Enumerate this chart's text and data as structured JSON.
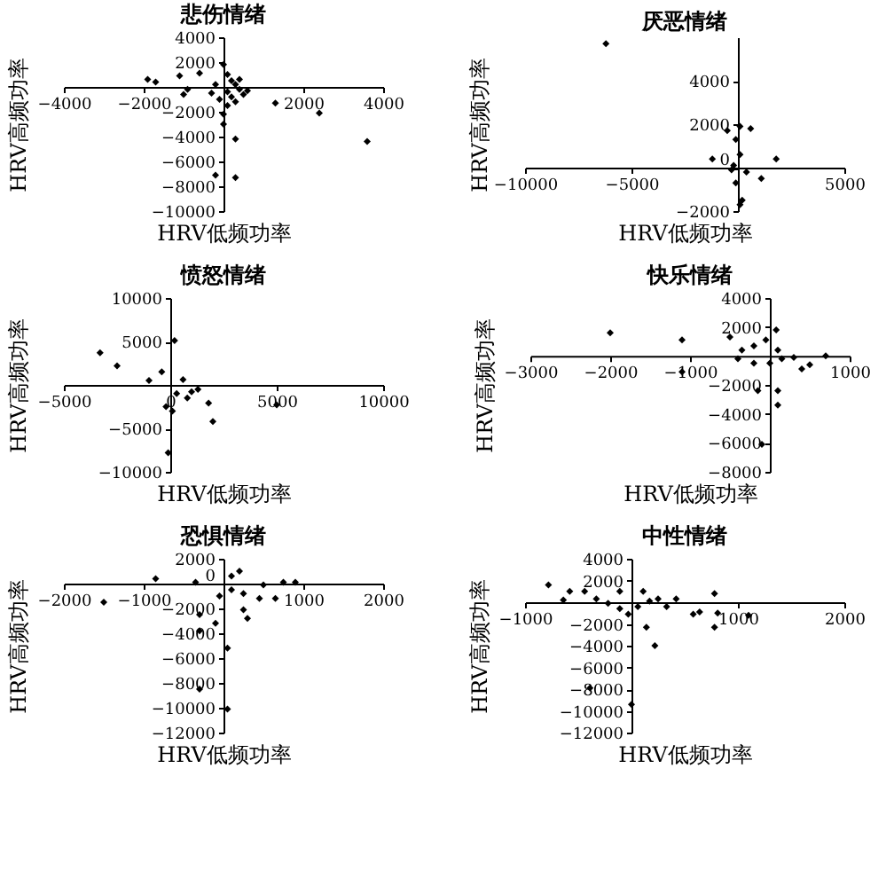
{
  "chart_data": [
    {
      "type": "scatter",
      "title": "悲伤情绪",
      "xlabel": "HRV低频功率",
      "ylabel": "HRV高频功率",
      "marker": "diamond",
      "color": "#000000",
      "xlim": [
        -4000,
        4000
      ],
      "ylim": [
        -10000,
        4000
      ],
      "xticks": [
        -4000,
        -2000,
        2000,
        4000
      ],
      "yticks": [
        -10000,
        -8000,
        -6000,
        -4000,
        -2000,
        2000,
        4000
      ],
      "x": [
        -1900,
        -1700,
        -1100,
        -600,
        -900,
        -1000,
        -300,
        0,
        100,
        200,
        300,
        400,
        100,
        200,
        500,
        300,
        100,
        0,
        300,
        1300,
        2400,
        3600,
        -200,
        300,
        600,
        -200,
        -100,
        400,
        0
      ],
      "values": [
        600,
        400,
        900,
        1100,
        -200,
        -600,
        -500,
        1800,
        1000,
        500,
        200,
        -200,
        -400,
        -800,
        -600,
        -1200,
        -1500,
        -2200,
        -4200,
        -1300,
        -2100,
        -4400,
        -7100,
        -7300,
        -300,
        200,
        -1000,
        600,
        -3000
      ]
    },
    {
      "type": "scatter",
      "title": "厌恶情绪",
      "xlabel": "HRV低频功率",
      "ylabel": "HRV高频功率",
      "marker": "diamond",
      "color": "#000000",
      "xlim": [
        -10000,
        5000
      ],
      "ylim": [
        -2000,
        6000
      ],
      "xticks": [
        -10000,
        -5000,
        5000
      ],
      "yticks": [
        -2000,
        0,
        2000,
        4000
      ],
      "x": [
        -6200,
        -500,
        100,
        600,
        -100,
        -1200,
        1800,
        1100,
        -200,
        100,
        400,
        -100,
        200,
        100,
        -300
      ],
      "values": [
        5700,
        1700,
        1900,
        1800,
        1300,
        400,
        400,
        -500,
        100,
        600,
        -200,
        -700,
        -1500,
        -1700,
        -100
      ]
    },
    {
      "type": "scatter",
      "title": "愤怒情绪",
      "xlabel": "HRV低频功率",
      "ylabel": "HRV高频功率",
      "marker": "diamond",
      "color": "#000000",
      "xlim": [
        -5000,
        10000
      ],
      "ylim": [
        -10000,
        10000
      ],
      "xticks": [
        -5000,
        0,
        5000,
        10000
      ],
      "yticks": [
        -10000,
        -5000,
        5000,
        10000
      ],
      "x": [
        -3300,
        -2500,
        200,
        1300,
        1800,
        2000,
        5000,
        -100,
        -1000,
        -400,
        300,
        600,
        -200,
        800,
        100,
        1000
      ],
      "values": [
        3700,
        2200,
        5100,
        -500,
        -2100,
        -4200,
        -2300,
        -7800,
        500,
        1500,
        -1000,
        600,
        -2500,
        -1500,
        -3000,
        -800
      ]
    },
    {
      "type": "scatter",
      "title": "快乐情绪",
      "xlabel": "HRV低频功率",
      "ylabel": "HRV高频功率",
      "marker": "diamond",
      "color": "#000000",
      "xlim": [
        -3000,
        1000
      ],
      "ylim": [
        -8000,
        4000
      ],
      "xticks": [
        -3000,
        -2000,
        -1000,
        1000
      ],
      "yticks": [
        -8000,
        -6000,
        -4000,
        -2000,
        2000,
        4000
      ],
      "x": [
        -2000,
        -1100,
        -1100,
        -150,
        100,
        100,
        -100,
        700,
        500,
        400,
        300,
        -500,
        -350,
        -200,
        -50,
        80,
        100,
        0,
        -200,
        -400,
        150
      ],
      "values": [
        1600,
        1100,
        -1100,
        -2400,
        -2400,
        -3400,
        -6100,
        0,
        -600,
        -900,
        -100,
        1300,
        400,
        700,
        1100,
        1800,
        400,
        -500,
        -500,
        -200,
        -200
      ]
    },
    {
      "type": "scatter",
      "title": "恐惧情绪",
      "xlabel": "HRV低频功率",
      "ylabel": "HRV高频功率",
      "marker": "diamond",
      "color": "#000000",
      "xlim": [
        -2000,
        2000
      ],
      "ylim": [
        -12000,
        2000
      ],
      "xticks": [
        -2000,
        -1000,
        1000,
        2000
      ],
      "yticks": [
        -12000,
        -10000,
        -8000,
        -6000,
        -4000,
        -2000,
        0,
        2000
      ],
      "x": [
        -1500,
        -850,
        -350,
        -300,
        -100,
        -300,
        50,
        -300,
        50,
        750,
        900,
        650,
        300,
        250,
        200,
        100,
        500,
        100,
        -50,
        250,
        450
      ],
      "values": [
        -1500,
        400,
        100,
        -2500,
        -3200,
        -3800,
        -5200,
        -8500,
        -10100,
        100,
        100,
        -1200,
        -2800,
        -2100,
        1000,
        600,
        -100,
        -500,
        -1000,
        -800,
        -1200
      ]
    },
    {
      "type": "scatter",
      "title": "中性情绪",
      "xlabel": "HRV低频功率",
      "ylabel": "HRV高频功率",
      "marker": "diamond",
      "color": "#000000",
      "xlim": [
        -1000,
        2000
      ],
      "ylim": [
        -12000,
        4000
      ],
      "xticks": [
        -1000,
        1000,
        2000
      ],
      "yticks": [
        -12000,
        -10000,
        -8000,
        -6000,
        -4000,
        -2000,
        2000,
        4000
      ],
      "x": [
        -780,
        -640,
        -580,
        -440,
        -330,
        -220,
        -110,
        -110,
        -30,
        60,
        110,
        170,
        140,
        220,
        0,
        250,
        330,
        420,
        580,
        640,
        780,
        810,
        1100,
        780,
        -390
      ],
      "values": [
        1600,
        200,
        1000,
        1000,
        300,
        -100,
        1000,
        -600,
        -1100,
        -400,
        1000,
        100,
        -2300,
        -4000,
        -9400,
        300,
        -400,
        300,
        -1100,
        -900,
        800,
        -1000,
        -1200,
        -2300,
        -7900
      ]
    }
  ]
}
